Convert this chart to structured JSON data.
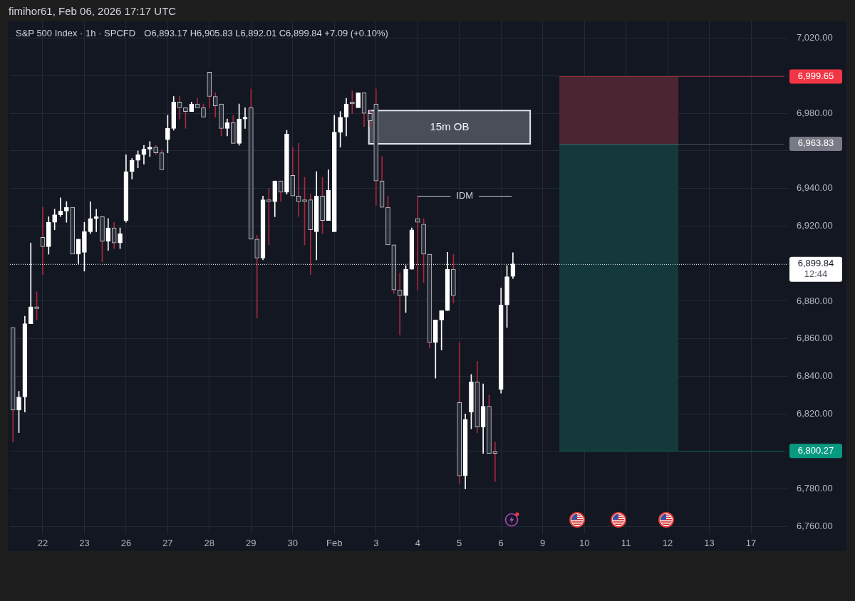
{
  "chart_data": {
    "type": "candlestick",
    "title": "S&P 500 Index · 1h · SPCFD",
    "subtitle": "O6,893.17 H6,905.83 L6,892.01 C6,899.84 +7.09 (+0.10%)",
    "annotations": [
      "fimihor61, Feb 06, 2026 17:17 UTC",
      "12:44"
    ],
    "categories": [
      null,
      null,
      null,
      null,
      null,
      "22",
      null,
      null,
      null,
      null,
      null,
      null,
      "23",
      null,
      null,
      null,
      null,
      null,
      null,
      "26",
      null,
      null,
      null,
      null,
      null,
      null,
      "27",
      null,
      null,
      null,
      null,
      null,
      null,
      "28",
      null,
      null,
      null,
      null,
      null,
      null,
      "29",
      null,
      null,
      null,
      null,
      null,
      null,
      "30",
      null,
      null,
      null,
      null,
      null,
      null,
      "Feb",
      null,
      null,
      null,
      null,
      null,
      null,
      "3",
      null,
      null,
      null,
      null,
      null,
      null,
      "4",
      null,
      null,
      null,
      null,
      null,
      null,
      "5",
      null,
      null,
      null,
      null,
      null,
      null,
      "6",
      null,
      null,
      null,
      null,
      null,
      null,
      "9",
      null,
      null,
      null,
      null,
      null,
      null,
      "10",
      null,
      null,
      null,
      null,
      null,
      null,
      "11",
      null,
      null,
      null,
      null,
      null,
      null,
      "12",
      null,
      null,
      null,
      null,
      null,
      null,
      "13",
      null,
      null,
      null,
      null,
      null,
      null,
      "17",
      null,
      null,
      null,
      null,
      null
    ],
    "ohlc": [
      [
        6866,
        6866,
        6805,
        6822
      ],
      [
        6822,
        6832,
        6810,
        6829
      ],
      [
        6829,
        6872,
        6821,
        6868
      ],
      [
        6868,
        6911,
        6868,
        6877
      ],
      [
        6877,
        6885,
        6870,
        6876
      ],
      [
        6914,
        6930,
        6894,
        6909
      ],
      [
        6909,
        6925,
        6905,
        6922
      ],
      [
        6922,
        6929,
        6918,
        6926
      ],
      [
        6926,
        6935,
        6925,
        6928
      ],
      [
        6928,
        6933,
        6922,
        6930
      ],
      [
        6930,
        6930,
        6905,
        6905
      ],
      [
        6905,
        6913,
        6900,
        6913
      ],
      [
        6906,
        6922,
        6896,
        6917
      ],
      [
        6917,
        6933,
        6916,
        6924
      ],
      [
        6924,
        6929,
        6917,
        6925
      ],
      [
        6925,
        6925,
        6901,
        6912
      ],
      [
        6912,
        6924,
        6907,
        6919
      ],
      [
        6919,
        6922,
        6908,
        6911
      ],
      [
        6911,
        6919,
        6908,
        6916
      ],
      [
        6923,
        6958,
        6922,
        6949
      ],
      [
        6949,
        6956,
        6945,
        6955
      ],
      [
        6955,
        6960,
        6951,
        6958
      ],
      [
        6958,
        6963,
        6953,
        6961
      ],
      [
        6961,
        6965,
        6957,
        6962
      ],
      [
        6962,
        6963,
        6958,
        6959
      ],
      [
        6959,
        6960.5,
        6950,
        6950
      ],
      [
        6966,
        6979,
        6959,
        6972
      ],
      [
        6972,
        6989,
        6971,
        6986
      ],
      [
        6986,
        6989,
        6977,
        6983
      ],
      [
        6983,
        6983,
        6972,
        6981
      ],
      [
        6981,
        6986,
        6981,
        6985
      ],
      [
        6985,
        6988,
        6983,
        6983
      ],
      [
        6983,
        6985,
        6978,
        6978
      ],
      [
        7002,
        7002,
        6983,
        6989
      ],
      [
        6989,
        6991,
        6978,
        6984
      ],
      [
        6985,
        6985,
        6968,
        6972
      ],
      [
        6972,
        6977,
        6968,
        6975
      ],
      [
        6975,
        6979,
        6964,
        6964
      ],
      [
        6964,
        6985,
        6963,
        6977
      ],
      [
        6977,
        6983,
        6972,
        6978
      ],
      [
        6983,
        6993,
        6913,
        6913
      ],
      [
        6913,
        6915,
        6871,
        6903
      ],
      [
        6903,
        6936,
        6902,
        6934
      ],
      [
        6934,
        6940,
        6910,
        6933
      ],
      [
        6933,
        6944,
        6925,
        6944
      ],
      [
        6944,
        6944,
        6933,
        6938
      ],
      [
        6938,
        6971,
        6937,
        6969
      ],
      [
        6947,
        6962,
        6936,
        6936
      ],
      [
        6936,
        6964,
        6925,
        6933
      ],
      [
        6934,
        6946,
        6910,
        6933
      ],
      [
        6934,
        6937,
        6894,
        6918
      ],
      [
        6917,
        6949,
        6902,
        6936
      ],
      [
        6936,
        6946,
        6916,
        6923
      ],
      [
        6923,
        6950,
        6923,
        6939
      ],
      [
        6917,
        6979,
        6917,
        6970
      ],
      [
        6970,
        6981,
        6962,
        6978
      ],
      [
        6978,
        6988,
        6968,
        6985
      ],
      [
        6986,
        6992,
        6980,
        6985
      ],
      [
        6983,
        6991,
        6983,
        6991
      ],
      [
        6991,
        6991,
        6973,
        6980
      ],
      [
        6980,
        6982,
        6973,
        6976
      ],
      [
        6985,
        6993,
        6931,
        6944
      ],
      [
        6944,
        6957,
        6930,
        6930
      ],
      [
        6930,
        6936,
        6910,
        6910
      ],
      [
        6910,
        6910,
        6884,
        6886
      ],
      [
        6886,
        6895,
        6862,
        6883
      ],
      [
        6883,
        6899,
        6874,
        6897
      ],
      [
        6897,
        6919,
        6897,
        6918
      ],
      [
        6924,
        6936,
        6886,
        6922
      ],
      [
        6921,
        6924,
        6890,
        6905
      ],
      [
        6905,
        6905,
        6855,
        6858
      ],
      [
        6858,
        6870,
        6839,
        6870
      ],
      [
        6870,
        6875,
        6854,
        6875
      ],
      [
        6875,
        6906,
        6875,
        6897
      ],
      [
        6897,
        6905,
        6879,
        6883
      ],
      [
        6826,
        6858,
        6783,
        6787
      ],
      [
        6787,
        6820,
        6780,
        6817
      ],
      [
        6821,
        6841,
        6812,
        6837
      ],
      [
        6837,
        6848,
        6810,
        6813
      ],
      [
        6813,
        6836,
        6799,
        6824
      ],
      [
        6824,
        6830,
        6799,
        6799
      ],
      [
        6800,
        6805,
        6784,
        6799
      ],
      [
        6833,
        6887,
        6831,
        6878
      ],
      [
        6878,
        6899,
        6866,
        6893
      ],
      [
        6893.17,
        6905.83,
        6892.01,
        6899.84
      ],
      null,
      null,
      null,
      null,
      null,
      null,
      null,
      null,
      null,
      null,
      null,
      null,
      null,
      null,
      null,
      null,
      null,
      null,
      null,
      null,
      null,
      null,
      null,
      null,
      null,
      null,
      null,
      null,
      null,
      null,
      null,
      null,
      null,
      null,
      null,
      null,
      null,
      null,
      null,
      null,
      null,
      null,
      null,
      null,
      null
    ],
    "ylim": [
      6756,
      7029
    ],
    "yticks": [
      {
        "value": 7020,
        "label": "7,020.00"
      },
      {
        "value": 7000,
        "label": null
      },
      {
        "value": 6980,
        "label": "6,980.00"
      },
      {
        "value": 6960,
        "label": null
      },
      {
        "value": 6940,
        "label": "6,940.00"
      },
      {
        "value": 6920,
        "label": "6,920.00"
      },
      {
        "value": 6900,
        "label": null
      },
      {
        "value": 6880,
        "label": "6,880.00"
      },
      {
        "value": 6860,
        "label": "6,860.00"
      },
      {
        "value": 6840,
        "label": "6,840.00"
      },
      {
        "value": 6820,
        "label": "6,820.00"
      },
      {
        "value": 6800,
        "label": null
      },
      {
        "value": 6780,
        "label": "6,780.00"
      },
      {
        "value": 6760,
        "label": "6,760.00"
      }
    ],
    "grid": true,
    "bands": [
      {
        "axis": "y",
        "from": 6963.83,
        "to": 6981.5,
        "label": "15m OB",
        "color": "#4a4e58"
      },
      {
        "axis": "y",
        "from": 6963.83,
        "to": 6999.65,
        "color": "#4b2532"
      },
      {
        "axis": "y",
        "from": 6800.27,
        "to": 6963.83,
        "color": "#15393b"
      }
    ],
    "ref_lines": [
      {
        "axis": "y",
        "value": 6999.65,
        "label": "6,999.65",
        "color": "#f23645"
      },
      {
        "axis": "y",
        "value": 6963.83,
        "label": "6,963.83",
        "color": "#787b86"
      },
      {
        "axis": "y",
        "value": 6800.27,
        "label": "6,800.27",
        "color": "#089981"
      },
      {
        "axis": "y",
        "value": 6899.84,
        "label": "6,899.84",
        "color": "#ffffff",
        "line_style": "dotted"
      },
      {
        "axis": "y",
        "value": 6936,
        "label": "IDM"
      }
    ]
  }
}
